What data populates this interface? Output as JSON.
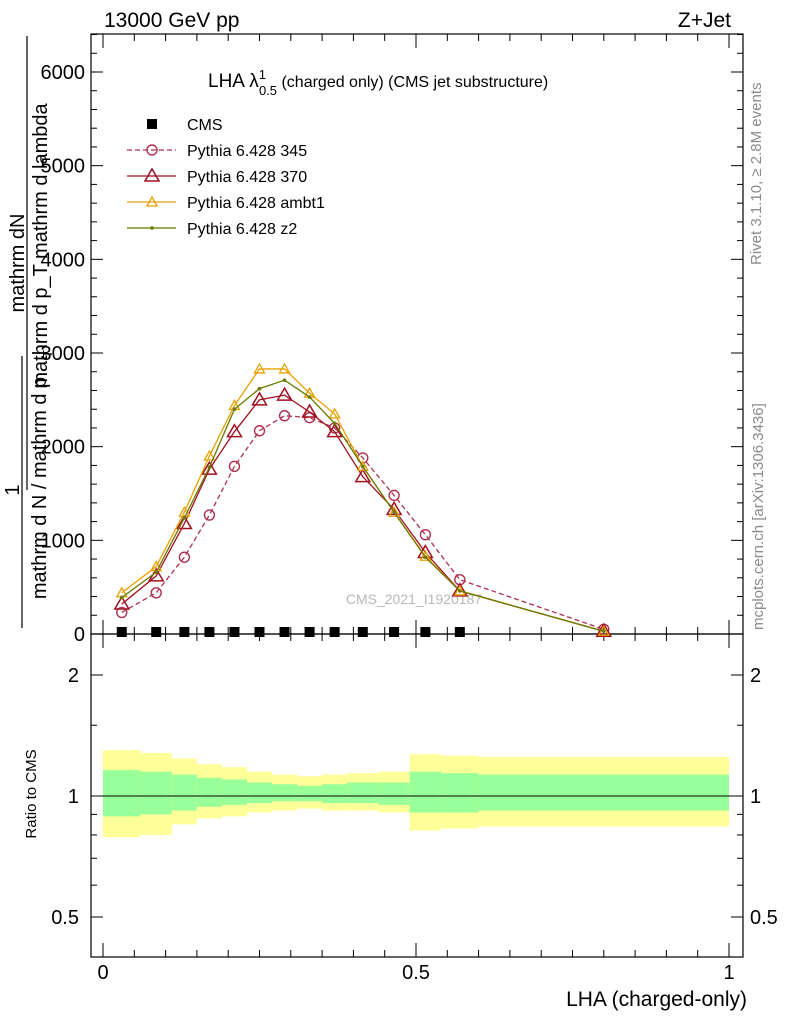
{
  "header": {
    "left": "13000 GeV pp",
    "right": "Z+Jet"
  },
  "side_text": {
    "rivet": "Rivet 3.1.10, ≥ 2.8M events",
    "mcplots": "mcplots.cern.ch [arXiv:1306.3436]"
  },
  "watermark": "CMS_2021_I1920187",
  "chart_data": {
    "type": "line",
    "title_main": "LHA λ",
    "title_sup": "1",
    "title_sub": "0.5",
    "title_rest": " (charged only) (CMS jet substructure)",
    "xlabel": "LHA (charged-only)",
    "ylabel_top": "mathrm dN",
    "ylabel_mid": "mathrm d p_T mathrm d lambda",
    "ylabel_sub": "T",
    "ylabel_den": "mathrm d N / mathrm d p",
    "ylabel_one": "1",
    "ylabel_ratio": "Ratio to CMS",
    "xlim": [
      0,
      1
    ],
    "ylim": [
      0,
      6500
    ],
    "x_ticks": [
      "0",
      "0.5",
      "1"
    ],
    "y_ticks": [
      "0",
      "1000",
      "2000",
      "3000",
      "4000",
      "5000",
      "6000"
    ],
    "ratio_ylim": [
      0.4,
      2.4
    ],
    "ratio_ticks": [
      "0.5",
      "1",
      "2"
    ],
    "x": [
      0.03,
      0.085,
      0.13,
      0.17,
      0.21,
      0.25,
      0.29,
      0.33,
      0.37,
      0.415,
      0.465,
      0.515,
      0.57,
      0.8
    ],
    "cms": [
      0,
      0,
      0,
      0,
      0,
      0,
      0,
      0,
      0,
      0,
      0,
      0,
      0,
      null
    ],
    "series": [
      {
        "name": "CMS",
        "color": "#000000",
        "marker": "square",
        "dashed": false,
        "values": [
          0,
          0,
          0,
          0,
          0,
          0,
          0,
          0,
          0,
          0,
          0,
          0,
          0,
          null
        ]
      },
      {
        "name": "Pythia 6.428 345",
        "color": "#b03050",
        "marker": "circle",
        "dashed": true,
        "values": [
          230,
          440,
          820,
          1270,
          1790,
          2170,
          2330,
          2310,
          2200,
          1880,
          1480,
          1060,
          580,
          50
        ]
      },
      {
        "name": "Pythia 6.428 370",
        "color": "#a01020",
        "marker": "triangle",
        "dashed": false,
        "values": [
          320,
          620,
          1180,
          1760,
          2160,
          2500,
          2550,
          2370,
          2160,
          1680,
          1330,
          870,
          460,
          30
        ]
      },
      {
        "name": "Pythia 6.428 ambt1",
        "color": "#e8a000",
        "marker": "triangle-small",
        "dashed": false,
        "values": [
          440,
          720,
          1300,
          1900,
          2440,
          2830,
          2830,
          2570,
          2350,
          1790,
          1300,
          830,
          460,
          30
        ]
      },
      {
        "name": "Pythia 6.428 z2",
        "color": "#6b7a00",
        "marker": "dot",
        "dashed": false,
        "values": [
          390,
          660,
          1240,
          1780,
          2400,
          2620,
          2710,
          2530,
          2250,
          1790,
          1300,
          820,
          460,
          30
        ]
      }
    ],
    "ratio_bands": {
      "edges": [
        0.0,
        0.06,
        0.11,
        0.15,
        0.19,
        0.23,
        0.27,
        0.31,
        0.35,
        0.39,
        0.44,
        0.49,
        0.54,
        0.6,
        1.0
      ],
      "yellow_lo": [
        0.79,
        0.8,
        0.85,
        0.88,
        0.89,
        0.91,
        0.92,
        0.93,
        0.92,
        0.92,
        0.91,
        0.82,
        0.83,
        0.84,
        0.85
      ],
      "yellow_hi": [
        1.3,
        1.28,
        1.24,
        1.2,
        1.18,
        1.15,
        1.13,
        1.12,
        1.13,
        1.14,
        1.15,
        1.27,
        1.26,
        1.25,
        1.24
      ],
      "green_lo": [
        0.89,
        0.9,
        0.92,
        0.94,
        0.95,
        0.96,
        0.97,
        0.97,
        0.96,
        0.96,
        0.95,
        0.91,
        0.91,
        0.92,
        0.93
      ],
      "green_hi": [
        1.16,
        1.15,
        1.13,
        1.11,
        1.1,
        1.08,
        1.07,
        1.06,
        1.07,
        1.08,
        1.08,
        1.15,
        1.14,
        1.13,
        1.12
      ]
    }
  }
}
